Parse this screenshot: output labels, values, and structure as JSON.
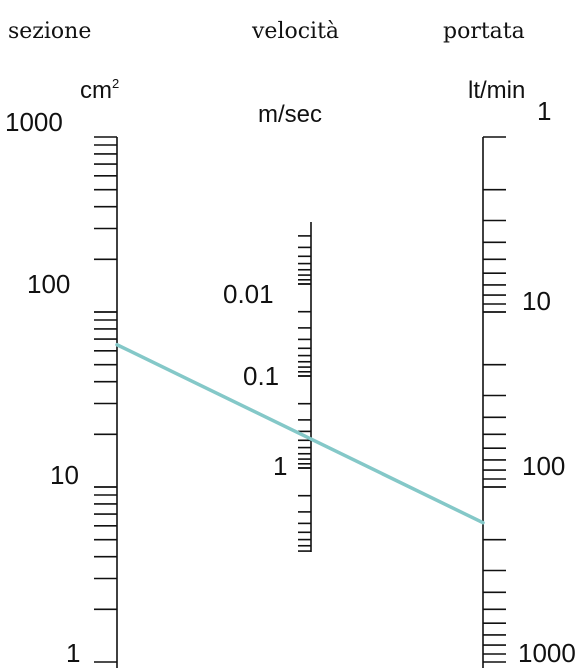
{
  "headers": {
    "sezione": "sezione",
    "velocita": "velocità",
    "portata": "portata"
  },
  "units": {
    "sezione": "cm²",
    "velocita": "m/sec",
    "portata": "lt/min"
  },
  "scales": {
    "sezione": {
      "labels": [
        "1000",
        "100",
        "10",
        "1"
      ],
      "min": 1,
      "max": 1000,
      "direction": "decreasing-down"
    },
    "velocita": {
      "labels": [
        "0.01",
        "0.1",
        "1"
      ],
      "min": 0.003,
      "max": 3,
      "direction": "increasing-down"
    },
    "portata": {
      "labels": [
        "1",
        "10",
        "100",
        "1000"
      ],
      "min": 1,
      "max": 1000,
      "direction": "increasing-down"
    }
  },
  "solution_line": {
    "sezione": 65,
    "velocita": 0.25,
    "portata": 160,
    "color": "#84c8c8"
  }
}
